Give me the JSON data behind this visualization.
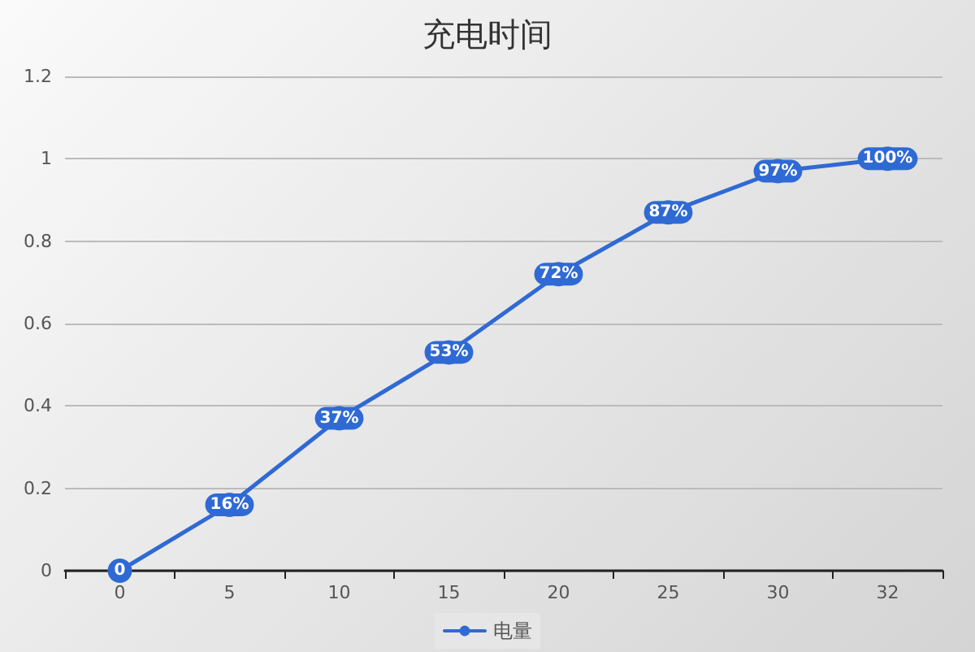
{
  "chart_data": {
    "type": "line",
    "title": "充电时间",
    "categories": [
      "0",
      "5",
      "10",
      "15",
      "20",
      "25",
      "30",
      "32"
    ],
    "series": [
      {
        "name": "电量",
        "color": "#2f6ad4",
        "values": [
          0,
          0.16,
          0.37,
          0.53,
          0.72,
          0.87,
          0.97,
          1.0
        ],
        "value_labels": [
          "0",
          "16%",
          "37%",
          "53%",
          "72%",
          "87%",
          "97%",
          "100%"
        ]
      }
    ],
    "ylim": [
      0,
      1.2
    ],
    "yticks": [
      0,
      0.2,
      0.4,
      0.6,
      0.8,
      1,
      1.2
    ],
    "grid": "y",
    "legend": "bottom",
    "marker": "circle",
    "line_style": "solid"
  }
}
